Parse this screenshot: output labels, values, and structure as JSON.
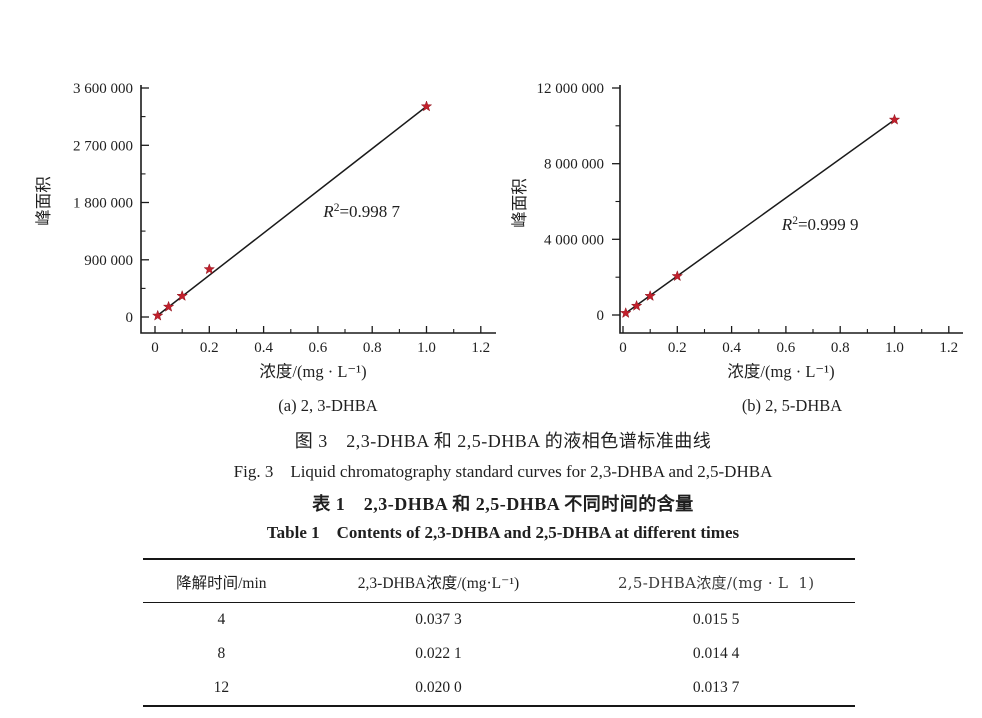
{
  "figure": {
    "caption_zh": "图 3　2,3-DHBA 和 2,5-DHBA 的液相色谱标准曲线",
    "caption_en": "Fig. 3　Liquid chromatography standard curves for 2,3-DHBA and 2,5-DHBA"
  },
  "chart_data": [
    {
      "type": "scatter",
      "id": "chart-a",
      "caption": "(a) 2, 3-DHBA",
      "xlabel": "浓度/(mg · L⁻¹)",
      "ylabel": "峰面积",
      "x": [
        0.01,
        0.05,
        0.1,
        0.2,
        1.0
      ],
      "y": [
        20000,
        160000,
        330000,
        750000,
        3310000
      ],
      "fit_line": {
        "x1": 0.01,
        "y1": 25000,
        "x2": 1.0,
        "y2": 3310000
      },
      "r2_label": "R²=0.998 7",
      "xlim": [
        0,
        1.2
      ],
      "ylim": [
        0,
        3600000
      ],
      "x_ticks": [
        0,
        0.2,
        0.4,
        0.6,
        0.8,
        1.0,
        1.2
      ],
      "x_tick_labels": [
        "0",
        "0.2",
        "0.4",
        "0.6",
        "0.8",
        "1.0",
        "1.2"
      ],
      "y_ticks": [
        0,
        900000,
        1800000,
        2700000,
        3600000
      ],
      "y_tick_labels": [
        "0",
        "900 000",
        "1 800 000",
        "2 700 000",
        "3 600 000"
      ],
      "annotation_pos": {
        "x": 0.62,
        "y": 1570000
      },
      "marker": "star",
      "marker_color": "#c2202c",
      "line_color": "#1a1a1a",
      "grid": false,
      "legend": null
    },
    {
      "type": "scatter",
      "id": "chart-b",
      "caption": "(b) 2, 5-DHBA",
      "xlabel": "浓度/(mg · L⁻¹)",
      "ylabel": "峰面积",
      "x": [
        0.01,
        0.05,
        0.1,
        0.2,
        1.0
      ],
      "y": [
        100000,
        480000,
        1000000,
        2050000,
        10320000
      ],
      "fit_line": {
        "x1": 0.01,
        "y1": 100000,
        "x2": 1.0,
        "y2": 10320000
      },
      "r2_label": "R²=0.999 9",
      "xlim": [
        0,
        1.2
      ],
      "ylim": [
        0,
        12000000
      ],
      "x_ticks": [
        0,
        0.2,
        0.4,
        0.6,
        0.8,
        1.0,
        1.2
      ],
      "x_tick_labels": [
        "0",
        "0.2",
        "0.4",
        "0.6",
        "0.8",
        "1.0",
        "1.2"
      ],
      "y_ticks": [
        0,
        4000000,
        8000000,
        12000000
      ],
      "y_tick_labels": [
        "0",
        "4 000 000",
        "8 000 000",
        "12 000 000"
      ],
      "annotation_pos": {
        "x": 0.585,
        "y": 4490000
      },
      "marker": "star",
      "marker_color": "#c2202c",
      "line_color": "#1a1a1a",
      "grid": false,
      "legend": null
    }
  ],
  "table": {
    "caption_zh": "表 1　2,3-DHBA 和 2,5-DHBA 不同时间的含量",
    "caption_en": "Table 1　Contents of 2,3-DHBA and 2,5-DHBA at different times",
    "headers": [
      "降解时间/min",
      "2,3-DHBA浓度/(mg·L⁻¹)",
      "2,5-DHBA浓度/(mg · L  1)"
    ],
    "rows": [
      [
        "4",
        "0.037 3",
        "0.015 5"
      ],
      [
        "8",
        "0.022 1",
        "0.014 4"
      ],
      [
        "12",
        "0.020 0",
        "0.013 7"
      ]
    ]
  }
}
